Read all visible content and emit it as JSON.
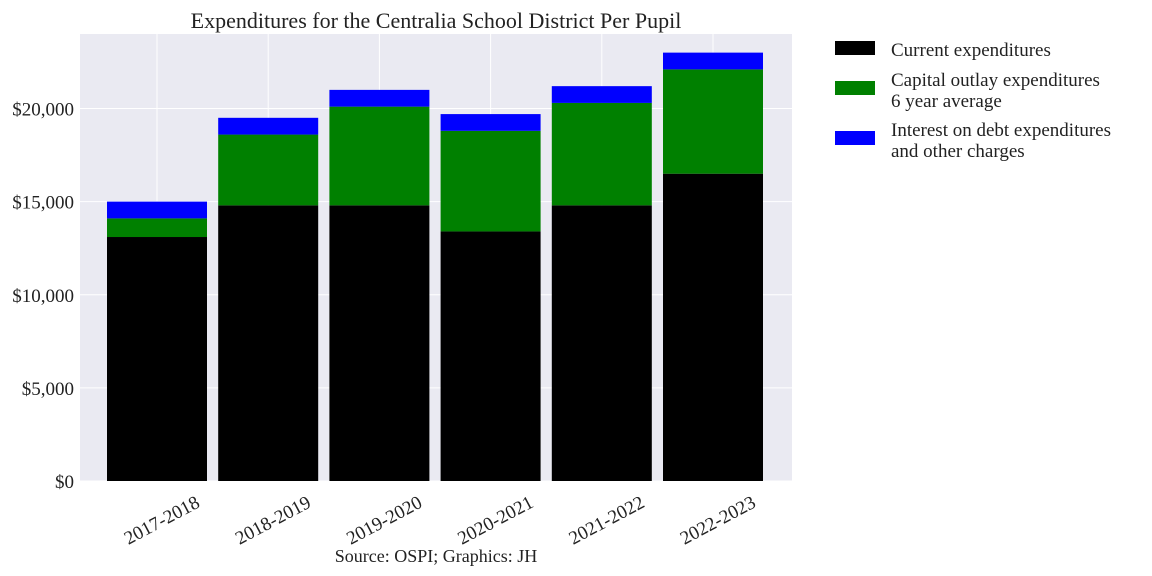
{
  "chart_data": {
    "type": "bar",
    "stacked": true,
    "title": "Expenditures for the Centralia School District Per Pupil",
    "xlabel": "",
    "ylabel": "",
    "caption": "Source: OSPI; Graphics: JH",
    "categories": [
      "2017-2018",
      "2018-2019",
      "2019-2020",
      "2020-2021",
      "2021-2022",
      "2022-2023"
    ],
    "series": [
      {
        "name": "Current expenditures",
        "color": "#000000",
        "values": [
          13100,
          14800,
          14800,
          13400,
          14800,
          16500
        ]
      },
      {
        "name": "Capital outlay expenditures\n6 year average",
        "color": "#008000",
        "values": [
          1000,
          3800,
          5300,
          5400,
          5500,
          5600
        ]
      },
      {
        "name": "Interest on debt expenditures\nand other charges",
        "color": "#0000ff",
        "values": [
          900,
          900,
          900,
          900,
          900,
          900
        ]
      }
    ],
    "ylim": [
      0,
      24000
    ],
    "yticks": [
      0,
      5000,
      10000,
      15000,
      20000
    ],
    "ytick_labels": [
      "$0",
      "$5,000",
      "$10,000",
      "$15,000",
      "$20,000"
    ],
    "grid": true,
    "legend_position": "outside-right",
    "colors": {
      "plot_background": "#eaeaf2",
      "grid": "#ffffff"
    }
  }
}
